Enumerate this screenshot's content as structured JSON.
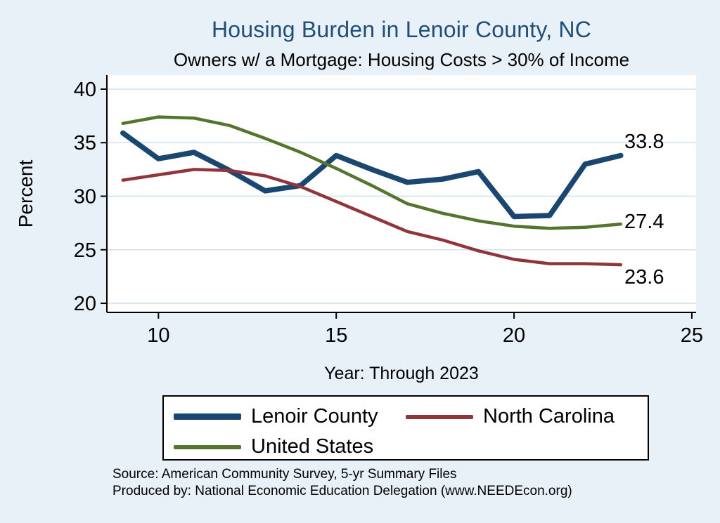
{
  "header": {
    "title": "Housing Burden in Lenoir County, NC",
    "subtitle": "Owners w/ a Mortgage: Housing Costs > 30% of Income"
  },
  "colors": {
    "background": "#e9f1f8",
    "plot_background": "#ffffff",
    "gridline": "#d6e4f0",
    "axis": "#000000",
    "title": "#1f4e79"
  },
  "chart_data": {
    "type": "line",
    "x": [
      9,
      10,
      11,
      12,
      13,
      14,
      15,
      16,
      17,
      18,
      19,
      20,
      21,
      22,
      23
    ],
    "xlim": [
      8.55,
      25.12
    ],
    "ylim": [
      19.15,
      41.31
    ],
    "xticks": {
      "values": [
        10,
        15,
        20,
        25
      ],
      "labels": [
        "10",
        "15",
        "20",
        "25"
      ]
    },
    "yticks": {
      "values": [
        20,
        25,
        30,
        35,
        40
      ],
      "labels": [
        "20",
        "25",
        "30",
        "35",
        "40"
      ]
    },
    "xlabel": "Year: Through 2023",
    "ylabel": "Percent",
    "grid": "horizontal",
    "legend_position": "bottom-center",
    "series": [
      {
        "name": "Lenoir County",
        "color": "#1a476f",
        "line_width": 7.5,
        "end_label": "33.8",
        "values": [
          35.9,
          33.5,
          34.1,
          32.4,
          30.5,
          31.0,
          33.8,
          32.5,
          31.3,
          31.6,
          32.3,
          28.1,
          28.2,
          33.0,
          33.8
        ]
      },
      {
        "name": "North Carolina",
        "color": "#90353b",
        "line_width": 4.5,
        "end_label": "23.6",
        "values": [
          31.5,
          32.0,
          32.5,
          32.4,
          31.9,
          30.9,
          29.5,
          28.1,
          26.7,
          25.9,
          24.9,
          24.1,
          23.7,
          23.7,
          23.6
        ]
      },
      {
        "name": "United States",
        "color": "#55752f",
        "line_width": 4.5,
        "end_label": "27.4",
        "values": [
          36.8,
          37.4,
          37.3,
          36.6,
          35.4,
          34.1,
          32.6,
          31.0,
          29.3,
          28.4,
          27.7,
          27.2,
          27.0,
          27.1,
          27.4
        ]
      }
    ]
  },
  "footer": {
    "source_line": "Source: American Community Survey, 5-yr Summary Files",
    "produced_line": "Produced by: National Economic Education Delegation (www.NEEDEcon.org)"
  }
}
